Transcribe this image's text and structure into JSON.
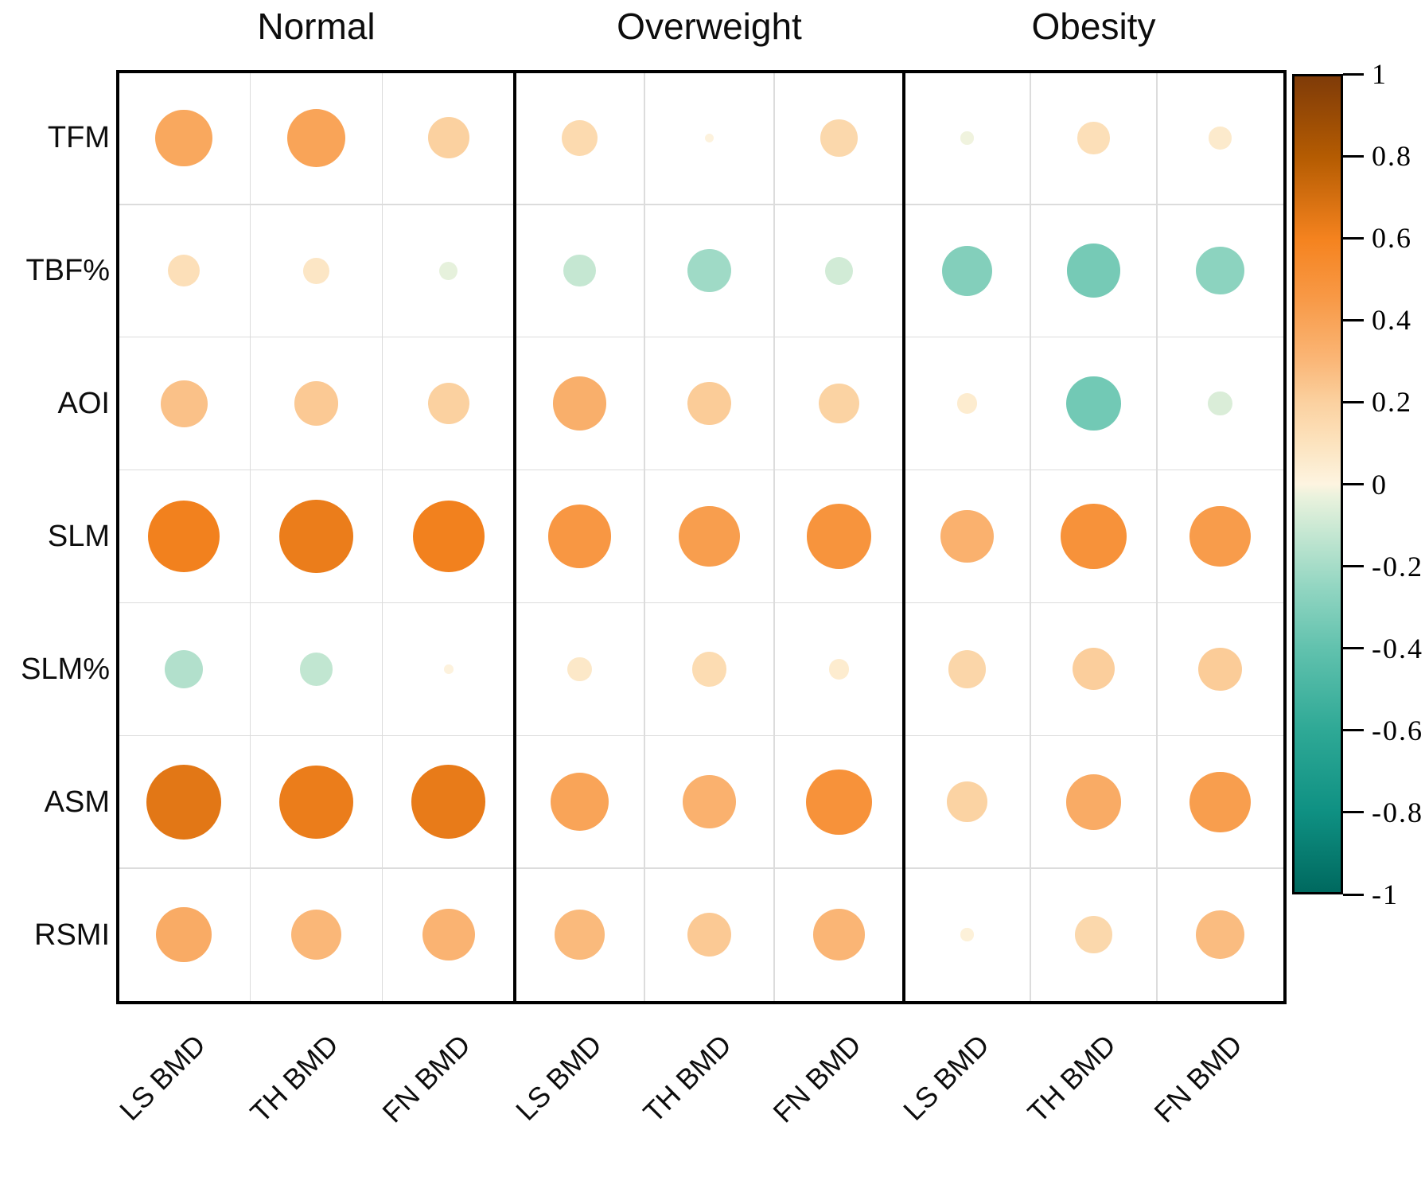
{
  "chart_data": {
    "type": "bubble-correlation",
    "description": "Correlation bubble matrix: circle area proportional to |r|, color encodes r (orange positive, teal negative)",
    "panels": [
      "Normal",
      "Overweight",
      "Obesity"
    ],
    "rows": [
      "TFM",
      "TBF%",
      "AOI",
      "SLM",
      "SLM%",
      "ASM",
      "RSMI"
    ],
    "columns": [
      "LS BMD",
      "TH BMD",
      "FN BMD"
    ],
    "values": {
      "Normal": [
        [
          0.38,
          0.4,
          0.2
        ],
        [
          0.12,
          0.08,
          -0.04
        ],
        [
          0.26,
          0.23,
          0.2
        ],
        [
          0.61,
          0.63,
          0.61
        ],
        [
          -0.17,
          -0.13,
          0.01
        ],
        [
          0.66,
          0.63,
          0.64
        ],
        [
          0.36,
          0.3,
          0.32
        ]
      ],
      "Overweight": [
        [
          0.15,
          0.01,
          0.16
        ],
        [
          -0.12,
          -0.22,
          -0.09
        ],
        [
          0.34,
          0.22,
          0.19
        ],
        [
          0.47,
          0.43,
          0.49
        ],
        [
          0.07,
          0.14,
          0.05
        ],
        [
          0.4,
          0.33,
          0.5
        ],
        [
          0.29,
          0.23,
          0.31
        ]
      ],
      "Obesity": [
        [
          -0.02,
          0.12,
          0.06
        ],
        [
          -0.3,
          -0.34,
          -0.27
        ],
        [
          0.05,
          -0.35,
          -0.07
        ],
        [
          0.33,
          0.5,
          0.44
        ],
        [
          0.17,
          0.21,
          0.22
        ],
        [
          0.19,
          0.36,
          0.43
        ],
        [
          0.02,
          0.16,
          0.28
        ]
      ]
    },
    "colorbar": {
      "min": -1,
      "max": 1,
      "tick_values": [
        1,
        0.8,
        0.6,
        0.4,
        0.2,
        0,
        -0.2,
        -0.4,
        -0.6,
        -0.8,
        -1
      ],
      "tick_labels": [
        "1",
        "0.8",
        "0.6",
        "0.4",
        "0.2",
        "0",
        "-0.2",
        "-0.4",
        "-0.6",
        "-0.8",
        "-1"
      ],
      "positive_accent": "#f5831f",
      "negative_accent": "#2aa795",
      "max_color": "#7f3b08",
      "min_color": "#00695f",
      "zero_color": "#fdf4e0",
      "color_stops": [
        [
          -1.0,
          "#00695f"
        ],
        [
          -0.8,
          "#0f9183"
        ],
        [
          -0.6,
          "#2fa996"
        ],
        [
          -0.4,
          "#62c2ae"
        ],
        [
          -0.25,
          "#93d6c2"
        ],
        [
          -0.12,
          "#c5e7d2"
        ],
        [
          -0.03,
          "#eaf2dd"
        ],
        [
          0.0,
          "#fdf4e0"
        ],
        [
          0.1,
          "#fce3be"
        ],
        [
          0.2,
          "#fbd1a0"
        ],
        [
          0.3,
          "#fab778"
        ],
        [
          0.45,
          "#f89a48"
        ],
        [
          0.6,
          "#f5831f"
        ],
        [
          0.8,
          "#b55c02"
        ],
        [
          1.0,
          "#7f3b08"
        ]
      ],
      "legend_position": "right",
      "grid": true
    }
  }
}
